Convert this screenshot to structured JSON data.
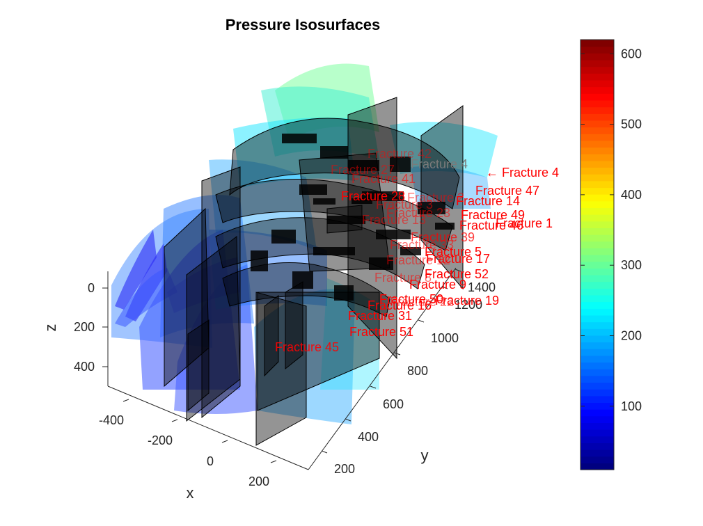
{
  "chart_data": {
    "type": "3d-isosurface",
    "title": "Pressure Isosurfaces",
    "xlabel": "x",
    "ylabel": "y",
    "zlabel": "z",
    "x_ticks": [
      "-400",
      "-200",
      "0",
      "200"
    ],
    "y_ticks": [
      "200",
      "400",
      "600",
      "800",
      "1000",
      "1200",
      "1400"
    ],
    "z_ticks": [
      "0",
      "200",
      "400"
    ],
    "z_reversed": true,
    "colorbar": {
      "colormap": "jet",
      "range": [
        10,
        620
      ],
      "ticks": [
        "100",
        "200",
        "300",
        "400",
        "500",
        "600"
      ],
      "tick_values": [
        100,
        200,
        300,
        400,
        500,
        600
      ]
    },
    "isosurface_colors": [
      "#2a2af5",
      "#3b55ff",
      "#2f7fff",
      "#25a8ff",
      "#19e6ff",
      "#3cf0d2",
      "#7dffa0"
    ],
    "fracture_plane_color": "#000000",
    "label_color": "#ff0000",
    "arrow_label": "← Fracture 4",
    "fracture_labels": [
      "Fracture 42",
      "Fracture 4",
      "Fracture 27",
      "Fracture 41",
      "Fracture 47",
      "Fracture 28",
      "Fracture 14",
      "Fracture 49",
      "Fracture 1",
      "Fracture 46",
      "Fracture 39",
      "Fracture 5",
      "Fracture 17",
      "Fracture 52",
      "Fracture 9",
      "Fracture 50",
      "Fracture 19",
      "Fracture 16",
      "Fracture 31",
      "Fracture 51",
      "Fracture 45"
    ]
  }
}
